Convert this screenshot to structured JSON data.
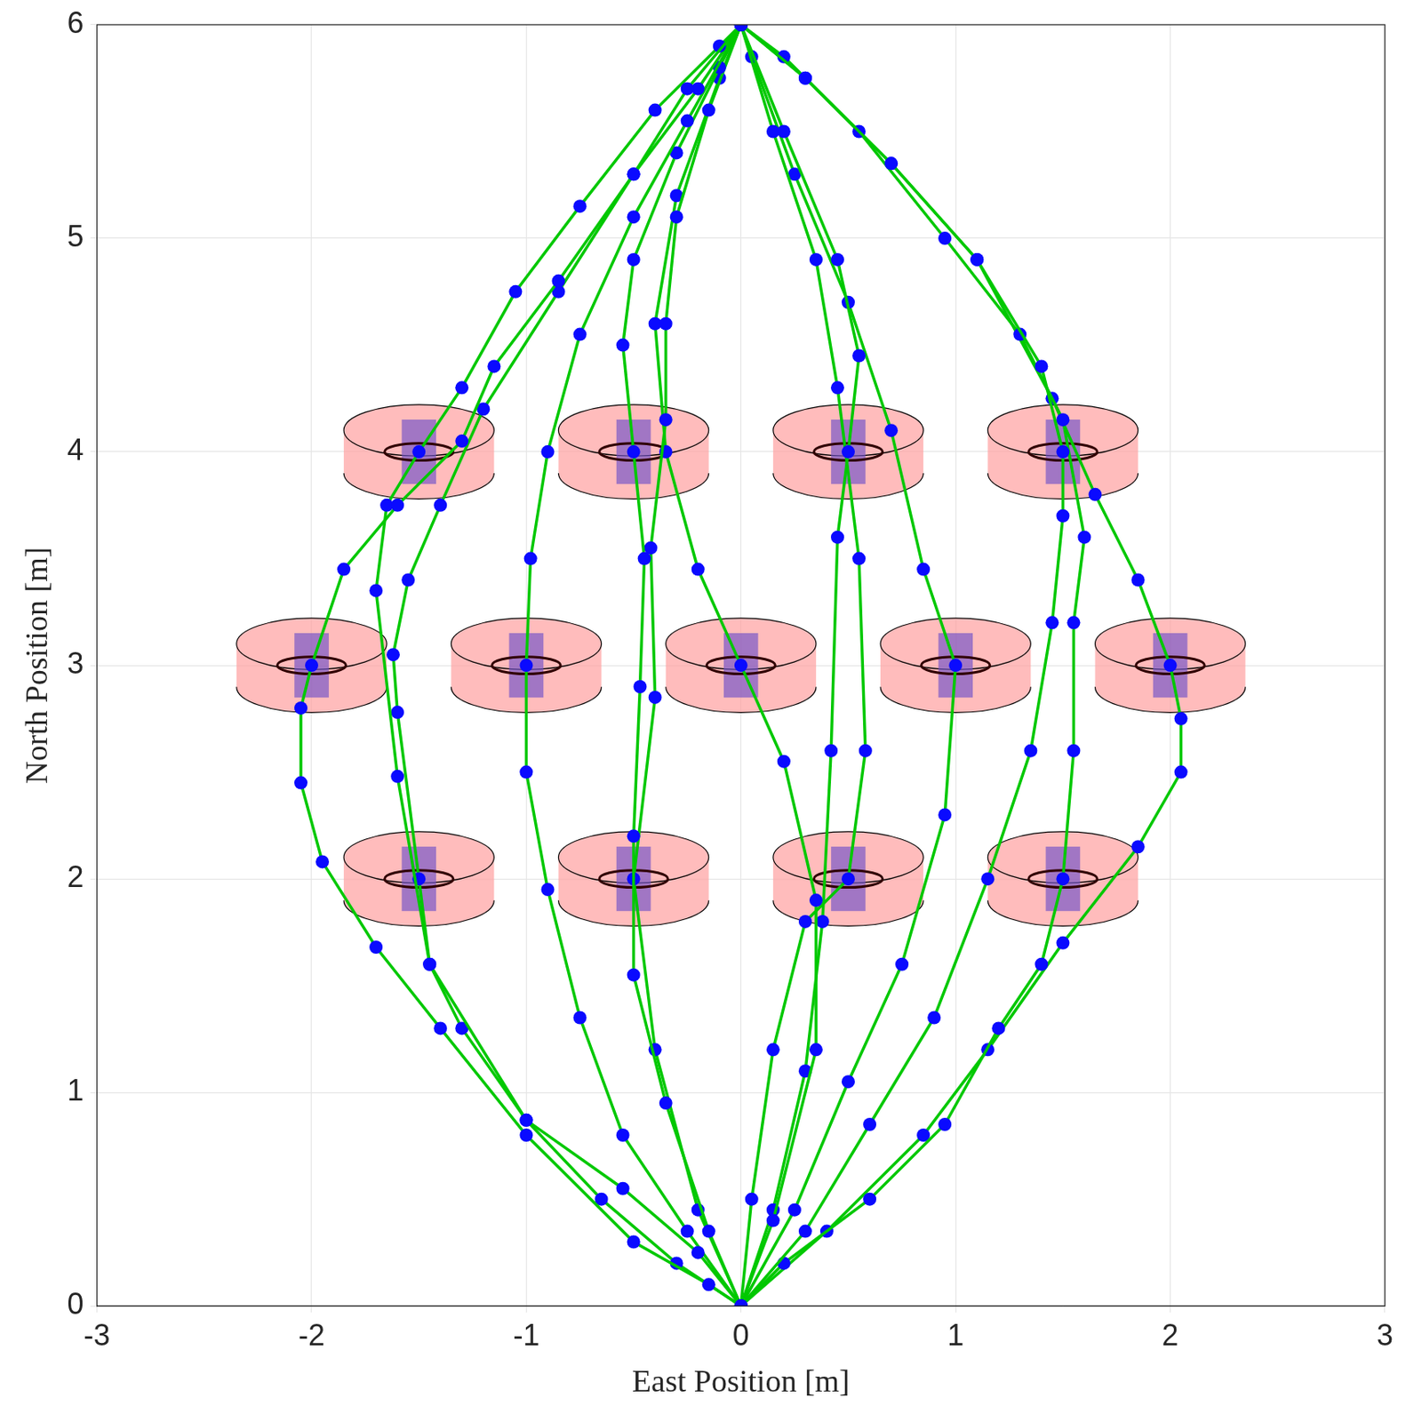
{
  "chart_data": {
    "type": "scatter",
    "x_label": "East Position [m]",
    "y_label": "North Position [m]",
    "xlim": [
      -3,
      3
    ],
    "xticks": [
      -3,
      -2,
      -1,
      0,
      1,
      2,
      3
    ],
    "ylim": [
      0,
      6
    ],
    "yticks": [
      0,
      1,
      2,
      3,
      4,
      5,
      6
    ],
    "grid": true,
    "color": "#00c800",
    "marker": "circle",
    "line_style": "solid",
    "series": [
      {
        "x": [
          0,
          -0.15,
          -0.5,
          -1.0,
          -1.4,
          -1.7,
          -1.95,
          -2.05,
          -2.05,
          -2.0,
          -1.85,
          -1.6,
          -1.3,
          -1.15,
          -0.85,
          -0.5,
          -0.25,
          0
        ],
        "y": [
          0,
          0.1,
          0.3,
          0.8,
          1.3,
          1.68,
          2.08,
          2.45,
          2.8,
          3.0,
          3.45,
          3.75,
          4.05,
          4.4,
          4.8,
          5.3,
          5.7,
          6
        ]
      },
      {
        "x": [
          0,
          -0.3,
          -0.65,
          -1.0,
          -1.45,
          -1.6,
          -1.7,
          -1.65,
          -1.5,
          -1.3,
          -1.05,
          -0.75,
          -0.4,
          -0.1,
          0
        ],
        "y": [
          0,
          0.2,
          0.5,
          0.87,
          1.6,
          2.48,
          3.35,
          3.75,
          4.0,
          4.3,
          4.75,
          5.15,
          5.6,
          5.9,
          6
        ]
      },
      {
        "x": [
          0,
          -0.2,
          -0.55,
          -1.0,
          -1.3,
          -1.45,
          -1.5,
          -1.6,
          -1.62,
          -1.55,
          -1.4,
          -1.2,
          -0.85,
          -0.5,
          -0.2,
          0
        ],
        "y": [
          0,
          0.25,
          0.55,
          0.87,
          1.3,
          1.6,
          2.0,
          2.78,
          3.05,
          3.4,
          3.75,
          4.2,
          4.75,
          5.3,
          5.7,
          6
        ]
      },
      {
        "x": [
          0,
          -0.25,
          -0.55,
          -0.75,
          -0.9,
          -1.0,
          -1.0,
          -0.98,
          -0.9,
          -0.75,
          -0.5,
          -0.25,
          0
        ],
        "y": [
          0,
          0.35,
          0.8,
          1.35,
          1.95,
          2.5,
          3.0,
          3.5,
          4.0,
          4.55,
          5.1,
          5.55,
          6
        ]
      },
      {
        "x": [
          0,
          -0.15,
          -0.35,
          -0.5,
          -0.5,
          -0.47,
          -0.45,
          -0.5,
          -0.55,
          -0.5,
          -0.3,
          -0.1,
          0
        ],
        "y": [
          0,
          0.35,
          0.95,
          1.55,
          2.2,
          2.9,
          3.5,
          4.0,
          4.5,
          4.9,
          5.4,
          5.8,
          6
        ]
      },
      {
        "x": [
          0,
          -0.2,
          -0.4,
          -0.5,
          -0.4,
          -0.42,
          -0.35,
          -0.35,
          -0.3,
          -0.15,
          0
        ],
        "y": [
          0,
          0.45,
          1.2,
          2.0,
          2.85,
          3.55,
          4.15,
          4.6,
          5.1,
          5.6,
          6
        ]
      },
      {
        "x": [
          0,
          0.15,
          0.35,
          0.35,
          0.2,
          0,
          -0.2,
          -0.35,
          -0.4,
          -0.3,
          -0.1,
          0
        ],
        "y": [
          0,
          0.4,
          1.2,
          1.9,
          2.55,
          3.0,
          3.45,
          4.0,
          4.6,
          5.2,
          5.75,
          6
        ]
      },
      {
        "x": [
          0,
          0.15,
          0.3,
          0.38,
          0.42,
          0.45,
          0.5,
          0.55,
          0.45,
          0.2,
          0
        ],
        "y": [
          0,
          0.45,
          1.1,
          1.8,
          2.6,
          3.6,
          4.0,
          4.45,
          4.9,
          5.5,
          6
        ]
      },
      {
        "x": [
          0,
          0.05,
          0.15,
          0.3,
          0.5,
          0.58,
          0.55,
          0.45,
          0.35,
          0.15,
          0
        ],
        "y": [
          0,
          0.5,
          1.2,
          1.8,
          2.0,
          2.6,
          3.5,
          4.3,
          4.9,
          5.5,
          6
        ]
      },
      {
        "x": [
          0,
          0.25,
          0.5,
          0.75,
          0.95,
          1.0,
          0.85,
          0.7,
          0.5,
          0.25,
          0.05,
          0
        ],
        "y": [
          0,
          0.45,
          1.05,
          1.6,
          2.3,
          3.0,
          3.45,
          4.1,
          4.7,
          5.3,
          5.85,
          6
        ]
      },
      {
        "x": [
          0,
          0.3,
          0.6,
          0.9,
          1.15,
          1.35,
          1.45,
          1.5,
          1.5,
          1.4,
          1.1,
          0.7,
          0.3,
          0
        ],
        "y": [
          0,
          0.35,
          0.85,
          1.35,
          2.0,
          2.6,
          3.2,
          3.7,
          4.0,
          4.4,
          4.9,
          5.35,
          5.75,
          6
        ]
      },
      {
        "x": [
          0,
          0.2,
          0.6,
          0.95,
          1.2,
          1.4,
          1.5,
          1.55,
          1.55,
          1.6,
          1.5,
          1.3,
          0.95,
          0.55,
          0.2,
          0
        ],
        "y": [
          0,
          0.2,
          0.5,
          0.85,
          1.3,
          1.6,
          2.0,
          2.6,
          3.2,
          3.6,
          4.15,
          4.55,
          5.0,
          5.5,
          5.85,
          6
        ]
      },
      {
        "x": [
          0,
          0.4,
          0.85,
          1.15,
          1.5,
          1.85,
          2.05,
          2.05,
          2.0,
          1.85,
          1.65,
          1.45,
          1.1,
          0.7,
          0.3,
          0
        ],
        "y": [
          0,
          0.35,
          0.8,
          1.2,
          1.7,
          2.15,
          2.5,
          2.75,
          3.0,
          3.4,
          3.8,
          4.25,
          4.9,
          5.35,
          5.75,
          6
        ]
      }
    ],
    "obstacles": {
      "x": [
        -1.5,
        -0.5,
        0.5,
        1.5,
        -2,
        -1,
        0,
        1,
        2,
        -1.5,
        -0.5,
        0.5,
        1.5
      ],
      "y": [
        4,
        4,
        4,
        4,
        3,
        3,
        3,
        3,
        3,
        2,
        2,
        2,
        2
      ]
    }
  }
}
